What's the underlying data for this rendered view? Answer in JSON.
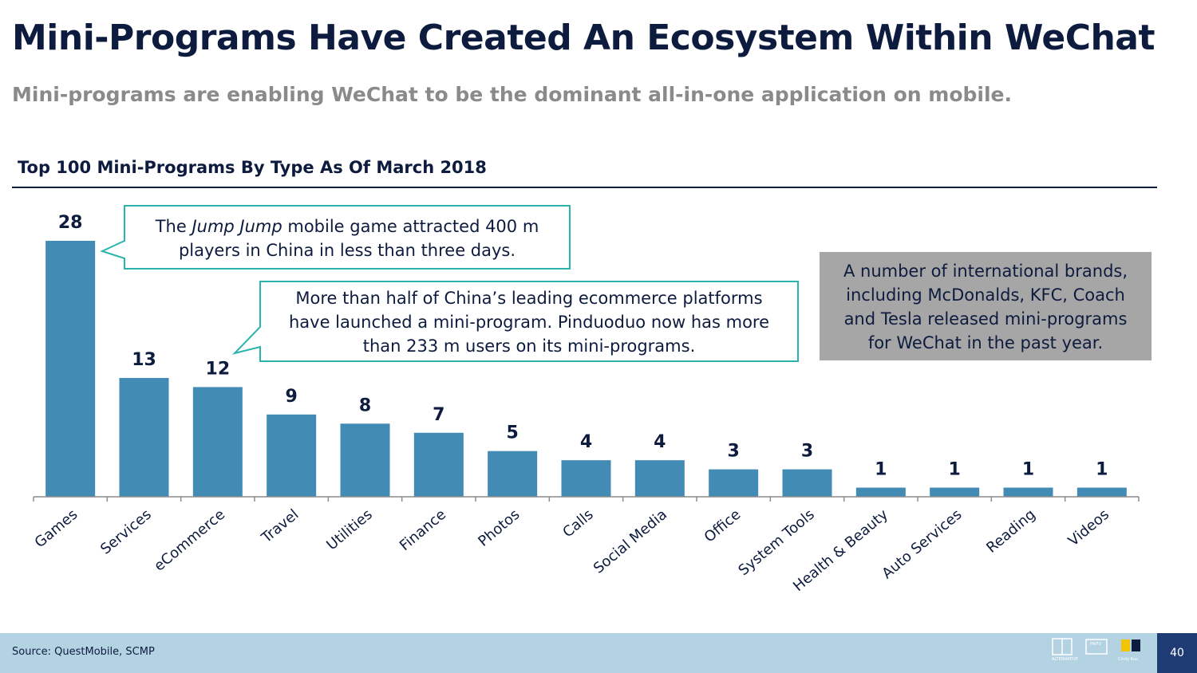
{
  "header": {
    "title": "Mini-Programs Have Created An Ecosystem Within WeChat",
    "subtitle": "Mini-programs are enabling WeChat to be the dominant all-in-one application on mobile."
  },
  "chart_data": {
    "type": "bar",
    "title": "Top 100 Mini-Programs By Type As Of March 2018",
    "categories": [
      "Games",
      "Services",
      "eCommerce",
      "Travel",
      "Utilities",
      "Finance",
      "Photos",
      "Calls",
      "Social Media",
      "Office",
      "System Tools",
      "Health & Beauty",
      "Auto Services",
      "Reading",
      "Videos"
    ],
    "values": [
      28,
      13,
      12,
      9,
      8,
      7,
      5,
      4,
      4,
      3,
      3,
      1,
      1,
      1,
      1
    ],
    "ylim": [
      0,
      28
    ],
    "xlabel": "",
    "ylabel": "",
    "bar_color": "#428bb5"
  },
  "callouts": {
    "games": {
      "prefix": "The ",
      "italic": "Jump Jump",
      "line1_rest": " mobile game attracted 400 m",
      "line2": "players in China in less than three days."
    },
    "ecommerce": {
      "line1": "More than half of China’s leading ecommerce platforms",
      "line2": "have launched a mini-program. Pinduoduo now has more",
      "line3": "than 233 m users on its mini-programs."
    },
    "brands": {
      "line1": "A number of international brands,",
      "line2": "including McDonalds, KFC, Coach",
      "line3": "and Tesla released mini-programs",
      "line4": "for WeChat in the past year."
    }
  },
  "footer": {
    "source": "Source: QuestMobile, SCMP",
    "page_number": "40",
    "logo1_text": "ALTERNATIVE",
    "logo2_text": "PAIFU",
    "logo3_text": "Cindy Kuo"
  },
  "colors": {
    "navy": "#0d1b3e",
    "teal_border": "#2bb3ae",
    "gray_box": "#a6a6a6",
    "footer_bg": "#b3d3e3",
    "page_badge": "#1f3b73"
  }
}
